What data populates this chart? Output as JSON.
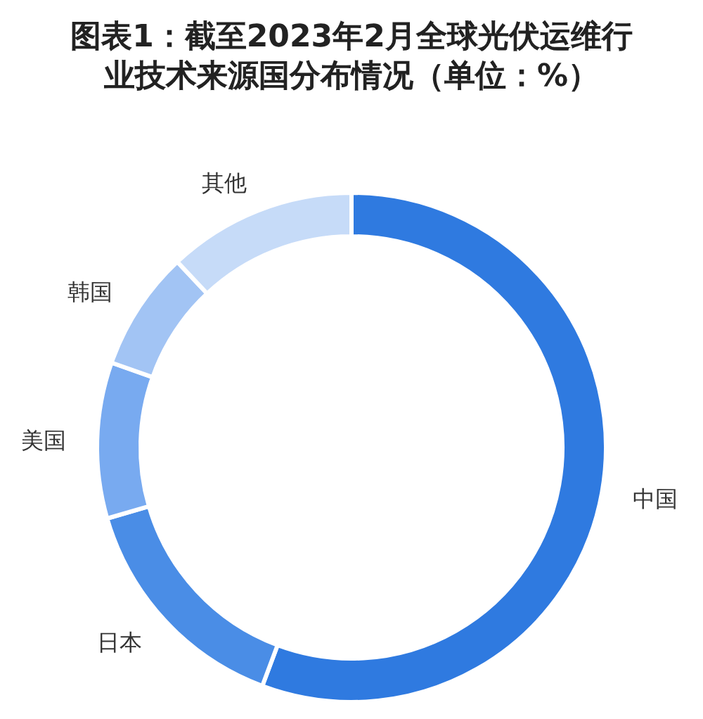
{
  "chart_data": {
    "type": "donut",
    "title": "图表1：截至2023年2月全球光伏运维行业技术来源国分布情况（单位：%）",
    "categories": [
      "中国",
      "日本",
      "美国",
      "韩国",
      "其他"
    ],
    "values": [
      55.7,
      14.8,
      9.9,
      7.6,
      12.0
    ],
    "colors": [
      "#2f7ae0",
      "#4a8de6",
      "#78aaf0",
      "#a2c4f4",
      "#c6dbf8"
    ]
  }
}
